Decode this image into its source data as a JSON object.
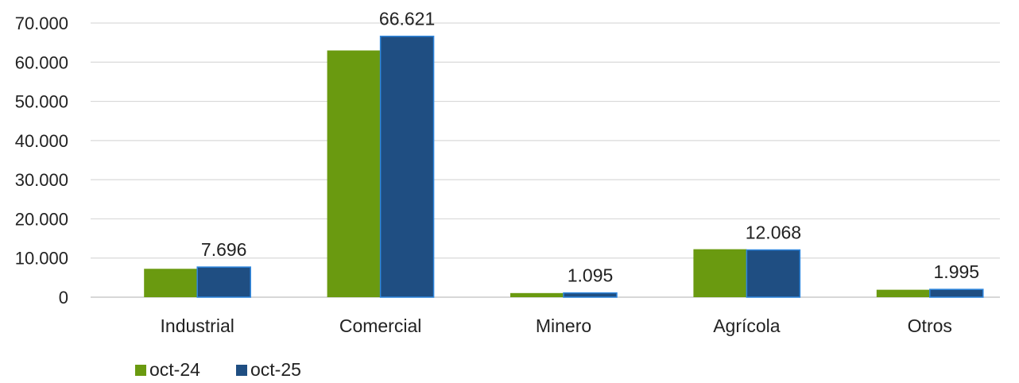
{
  "chart_data": {
    "type": "bar",
    "categories": [
      "Industrial",
      "Comercial",
      "Minero",
      "Agrícola",
      "Otros"
    ],
    "series": [
      {
        "name": "oct-24",
        "color": "#6a9a10",
        "values": [
          7250,
          63000,
          1050,
          12250,
          1900
        ],
        "labels": [
          null,
          null,
          null,
          null,
          null
        ]
      },
      {
        "name": "oct-25",
        "color": "#1f4e82",
        "values": [
          7696,
          66621,
          1095,
          12068,
          1995
        ],
        "labels": [
          "7.696",
          "66.621",
          "1.095",
          "12.068",
          "1.995"
        ]
      }
    ],
    "ylim": [
      0,
      70000
    ],
    "yticks": [
      0,
      10000,
      20000,
      30000,
      40000,
      50000,
      60000,
      70000
    ],
    "ytick_labels": [
      "0",
      "10.000",
      "20.000",
      "30.000",
      "40.000",
      "50.000",
      "60.000",
      "70.000"
    ],
    "grid": true,
    "legend_position": "bottom-left",
    "title": "",
    "xlabel": "",
    "ylabel": ""
  }
}
